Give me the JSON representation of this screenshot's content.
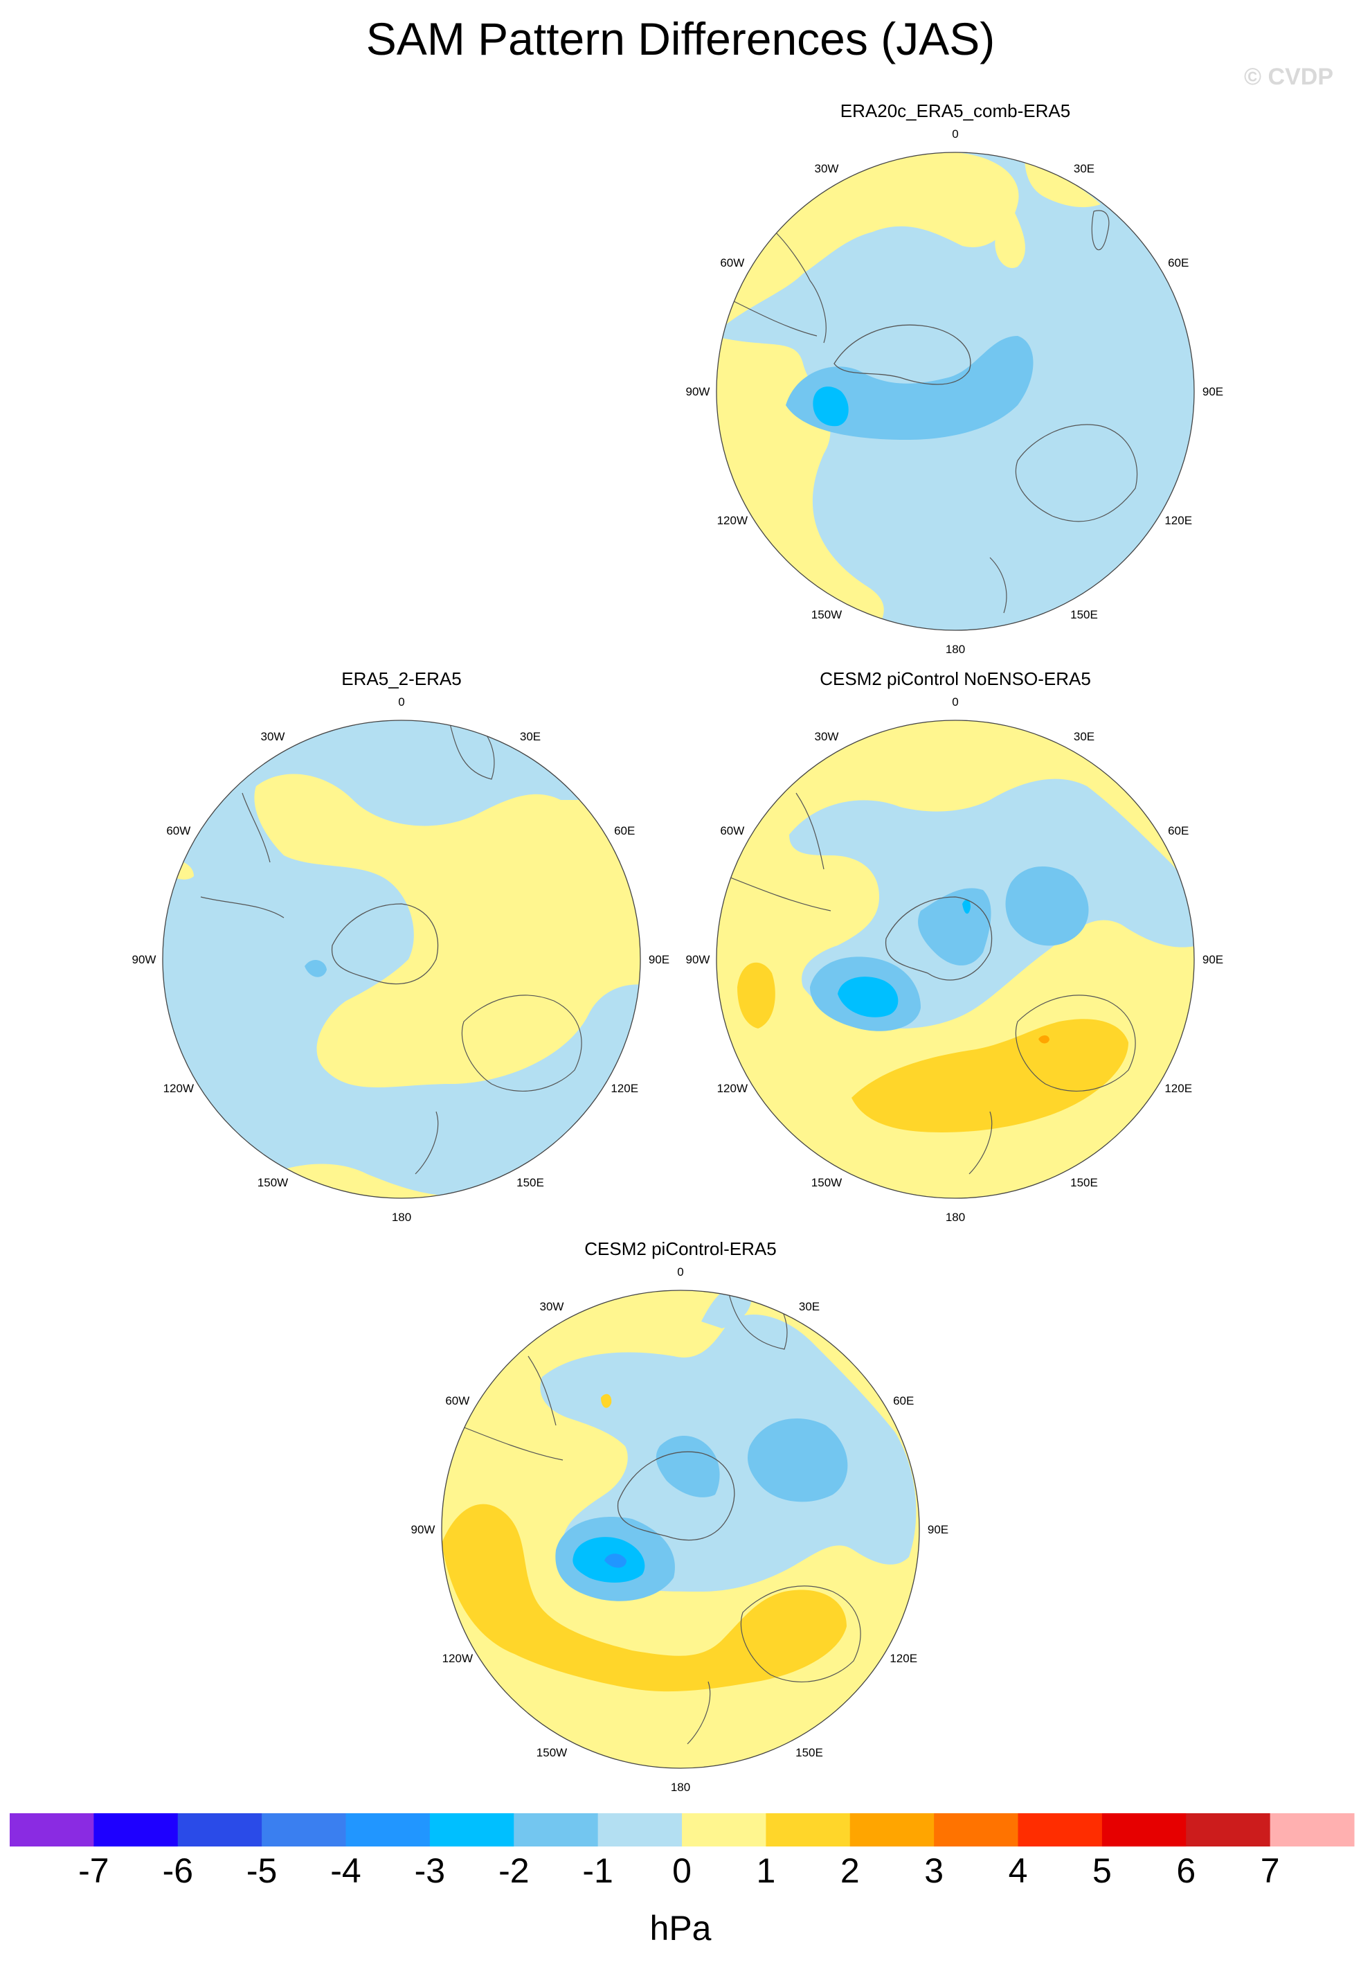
{
  "title": "SAM Pattern Differences (JAS)",
  "copyright": "© CVDP",
  "panels": [
    {
      "title": "ERA20c_ERA5_comb-ERA5"
    },
    {
      "title": "ERA5_2-ERA5"
    },
    {
      "title": "CESM2 piControl NoENSO-ERA5"
    },
    {
      "title": "CESM2 piControl-ERA5"
    }
  ],
  "longitude_labels": [
    "0",
    "30E",
    "60E",
    "90E",
    "120E",
    "150E",
    "180",
    "150W",
    "120W",
    "90W",
    "60W",
    "30W"
  ],
  "colorbar": {
    "units": "hPa",
    "labels": [
      "-7",
      "-6",
      "-5",
      "-4",
      "-3",
      "-2",
      "-1",
      "0",
      "1",
      "2",
      "3",
      "4",
      "5",
      "6",
      "7"
    ],
    "colors": [
      "#8a2be2",
      "#1e00ff",
      "#2a4be8",
      "#3a7ff0",
      "#2196ff",
      "#00bfff",
      "#73c6f0",
      "#b3dff2",
      "#fff68f",
      "#ffd62a",
      "#ffa500",
      "#ff7300",
      "#ff2d00",
      "#e60000",
      "#cc1c1c",
      "#ffb0b0"
    ]
  },
  "colors": {
    "neg1": "#b3dff2",
    "neg2": "#73c6f0",
    "neg3": "#00bfff",
    "neg4": "#2196ff",
    "pos1": "#fff68f",
    "pos2": "#ffd62a",
    "pos3": "#ffa500",
    "coast": "#555555"
  }
}
